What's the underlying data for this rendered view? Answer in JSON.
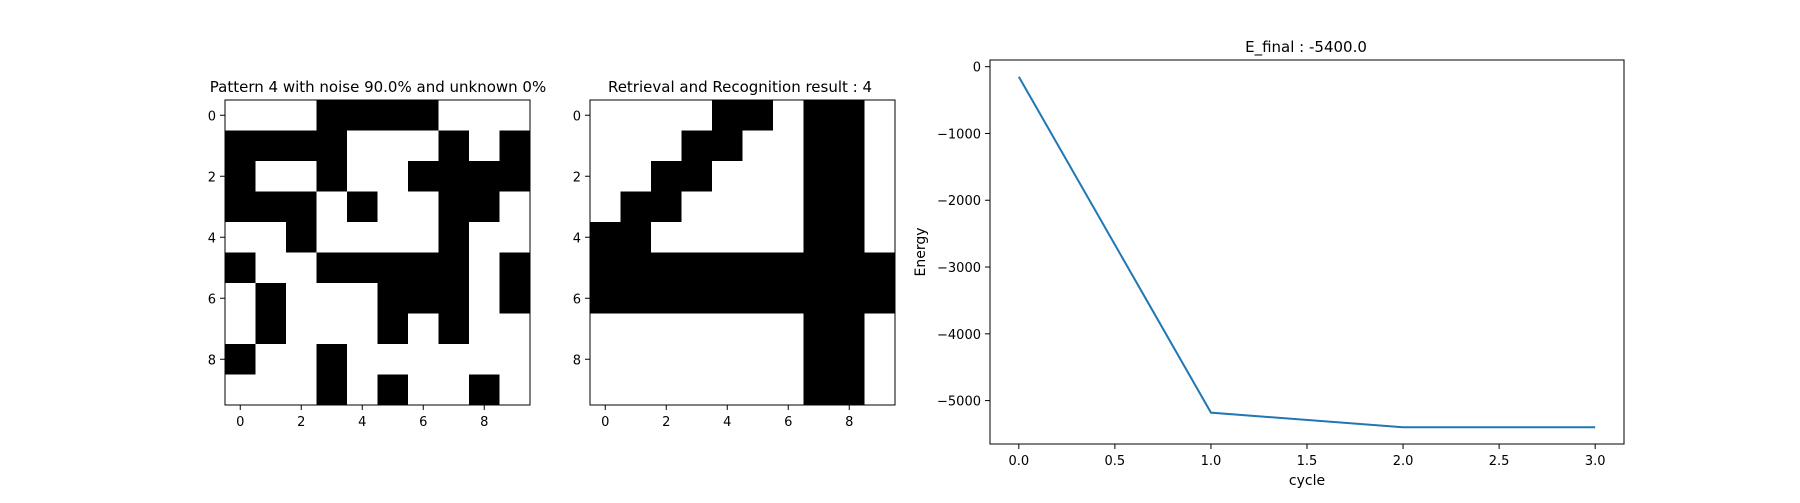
{
  "chart_data": [
    {
      "type": "heatmap",
      "title": "Pattern 4 with noise 90.0% and unknown 0%",
      "colormap": [
        "#ffffff",
        "#000000"
      ],
      "x_ticks": [
        "0",
        "2",
        "4",
        "6",
        "8"
      ],
      "y_ticks": [
        "0",
        "2",
        "4",
        "6",
        "8"
      ],
      "grid": [
        [
          0,
          0,
          0,
          1,
          1,
          1,
          1,
          0,
          0,
          0
        ],
        [
          1,
          1,
          1,
          1,
          0,
          0,
          0,
          1,
          0,
          1
        ],
        [
          1,
          0,
          0,
          1,
          0,
          0,
          1,
          1,
          1,
          1
        ],
        [
          1,
          1,
          1,
          0,
          1,
          0,
          0,
          1,
          1,
          0
        ],
        [
          0,
          0,
          1,
          0,
          0,
          0,
          0,
          1,
          0,
          0
        ],
        [
          1,
          0,
          0,
          1,
          1,
          1,
          1,
          1,
          0,
          1
        ],
        [
          0,
          1,
          0,
          0,
          0,
          1,
          1,
          1,
          0,
          1
        ],
        [
          0,
          1,
          0,
          0,
          0,
          1,
          0,
          1,
          0,
          0
        ],
        [
          1,
          0,
          0,
          1,
          0,
          0,
          0,
          0,
          0,
          0
        ],
        [
          0,
          0,
          0,
          1,
          0,
          1,
          0,
          0,
          1,
          0
        ]
      ]
    },
    {
      "type": "heatmap",
      "title": "Retrieval and Recognition result : 4",
      "colormap": [
        "#ffffff",
        "#000000"
      ],
      "x_ticks": [
        "0",
        "2",
        "4",
        "6",
        "8"
      ],
      "y_ticks": [
        "0",
        "2",
        "4",
        "6",
        "8"
      ],
      "grid": [
        [
          0,
          0,
          0,
          0,
          1,
          1,
          0,
          1,
          1,
          0
        ],
        [
          0,
          0,
          0,
          1,
          1,
          0,
          0,
          1,
          1,
          0
        ],
        [
          0,
          0,
          1,
          1,
          0,
          0,
          0,
          1,
          1,
          0
        ],
        [
          0,
          1,
          1,
          0,
          0,
          0,
          0,
          1,
          1,
          0
        ],
        [
          1,
          1,
          0,
          0,
          0,
          0,
          0,
          1,
          1,
          0
        ],
        [
          1,
          1,
          1,
          1,
          1,
          1,
          1,
          1,
          1,
          1
        ],
        [
          1,
          1,
          1,
          1,
          1,
          1,
          1,
          1,
          1,
          1
        ],
        [
          0,
          0,
          0,
          0,
          0,
          0,
          0,
          1,
          1,
          0
        ],
        [
          0,
          0,
          0,
          0,
          0,
          0,
          0,
          1,
          1,
          0
        ],
        [
          0,
          0,
          0,
          0,
          0,
          0,
          0,
          1,
          1,
          0
        ]
      ]
    },
    {
      "type": "line",
      "title": "E_final : -5400.0",
      "xlabel": "cycle",
      "ylabel": "Energy",
      "x": [
        0,
        1,
        2,
        3
      ],
      "y": [
        -150,
        -5180,
        -5400,
        -5400
      ],
      "xlim": [
        -0.15,
        3.15
      ],
      "ylim": [
        -5650,
        100
      ],
      "x_ticks": [
        "0.0",
        "0.5",
        "1.0",
        "1.5",
        "2.0",
        "2.5",
        "3.0"
      ],
      "y_ticks": [
        "0",
        "−1000",
        "−2000",
        "−3000",
        "−4000",
        "−5000"
      ],
      "line_color": "#1f77b4",
      "grid": false
    }
  ]
}
